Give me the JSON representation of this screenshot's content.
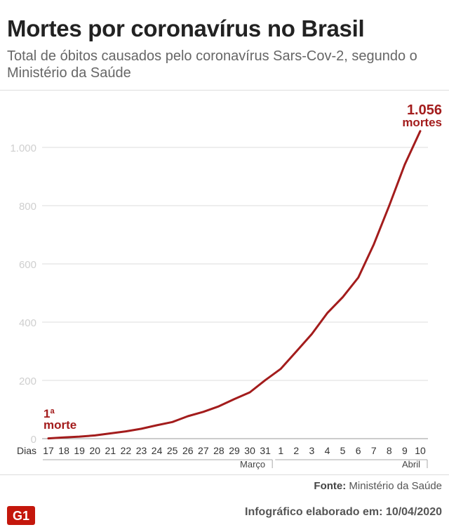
{
  "header": {
    "title": "Mortes por coronavírus no Brasil",
    "subtitle": "Total de óbitos causados pelo coronavírus Sars-Cov-2, segundo o Ministério da Saúde"
  },
  "chart_data": {
    "type": "line",
    "title": "Mortes por coronavírus no Brasil",
    "subtitle": "Total de óbitos causados pelo coronavírus Sars-Cov-2, segundo o Ministério da Saúde",
    "xlabel": "Dias",
    "ylabel": "",
    "x": [
      "17",
      "18",
      "19",
      "20",
      "21",
      "22",
      "23",
      "24",
      "25",
      "26",
      "27",
      "28",
      "29",
      "30",
      "31",
      "1",
      "2",
      "3",
      "4",
      "5",
      "6",
      "7",
      "8",
      "9",
      "10"
    ],
    "month_labels": [
      {
        "label": "Março",
        "from": "17",
        "to": "31"
      },
      {
        "label": "Abril",
        "from": "1",
        "to": "10"
      }
    ],
    "series": [
      {
        "values": [
          1,
          4,
          7,
          11,
          18,
          25,
          34,
          46,
          57,
          77,
          92,
          111,
          136,
          159,
          201,
          240,
          299,
          359,
          431,
          486,
          553,
          667,
          800,
          941,
          1056
        ]
      }
    ],
    "ylim": [
      0,
      1056
    ],
    "yticks": [
      0,
      200,
      400,
      600,
      800,
      1000
    ],
    "ytick_labels": [
      "0",
      "200",
      "400",
      "600",
      "800",
      "1.000"
    ],
    "grid": true,
    "annotations": [
      {
        "text_line1": "1ª",
        "text_line2": "morte",
        "at": "17"
      },
      {
        "text_line1": "1.056",
        "text_line2": "mortes",
        "at": "10"
      }
    ],
    "line_color": "#a31c1c"
  },
  "footer": {
    "source_label": "Fonte:",
    "source_value": "Ministério da Saúde",
    "logo": "G1",
    "credit": "Infográfico elaborado em: 10/04/2020"
  }
}
